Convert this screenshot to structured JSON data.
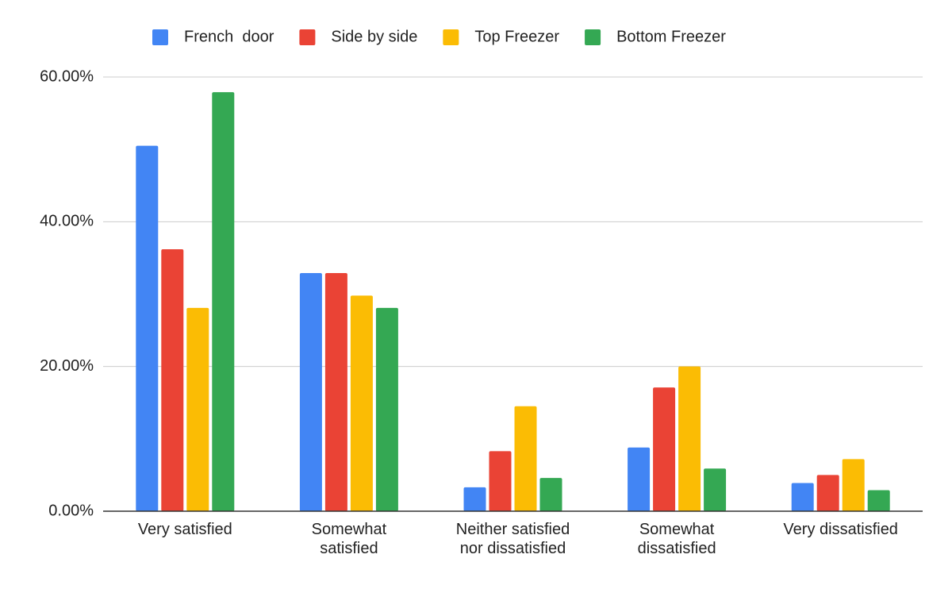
{
  "chart_data": {
    "type": "bar",
    "categories": [
      "Very satisfied",
      "Somewhat\nsatisfied",
      "Neither satisfied\nnor dissatisfied",
      "Somewhat\ndissatisfied",
      "Very dissatisfied"
    ],
    "series": [
      {
        "name": "French  door",
        "color": "#4285f4",
        "values": [
          50.5,
          32.9,
          3.3,
          8.8,
          3.9
        ]
      },
      {
        "name": "Side by side",
        "color": "#ea4335",
        "values": [
          36.2,
          32.9,
          8.3,
          17.1,
          5.0
        ]
      },
      {
        "name": "Top Freezer",
        "color": "#fbbc04",
        "values": [
          28.1,
          29.8,
          14.5,
          20.0,
          7.2
        ]
      },
      {
        "name": "Bottom Freezer",
        "color": "#34a853",
        "values": [
          57.9,
          28.1,
          4.6,
          5.9,
          2.9
        ]
      }
    ],
    "ylim": [
      0,
      60
    ],
    "yticks": [
      {
        "value": 0,
        "label": "0.00%"
      },
      {
        "value": 20,
        "label": "20.00%"
      },
      {
        "value": 40,
        "label": "40.00%"
      },
      {
        "value": 60,
        "label": "60.00%"
      }
    ],
    "grid": true,
    "legend": "top"
  }
}
